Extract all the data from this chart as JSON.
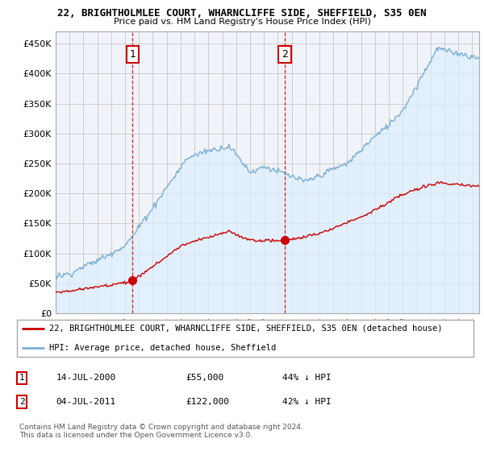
{
  "title": "22, BRIGHTHOLMLEE COURT, WHARNCLIFFE SIDE, SHEFFIELD, S35 0EN",
  "subtitle": "Price paid vs. HM Land Registry's House Price Index (HPI)",
  "ylabel_ticks": [
    0,
    50000,
    100000,
    150000,
    200000,
    250000,
    300000,
    350000,
    400000,
    450000
  ],
  "ylim": [
    0,
    470000
  ],
  "xlim_start": 1995.3,
  "xlim_end": 2025.5,
  "sale1_year": 2000.54,
  "sale1_price": 55000,
  "sale1_label": "1",
  "sale2_year": 2011.5,
  "sale2_price": 122000,
  "sale2_label": "2",
  "line_color_property": "#cc0000",
  "line_color_hpi": "#7bafd4",
  "fill_color_hpi": "#ddeeff",
  "vline_color": "#cc0000",
  "legend_line1": "22, BRIGHTHOLMLEE COURT, WHARNCLIFFE SIDE, SHEFFIELD, S35 0EN (detached house)",
  "legend_line2": "HPI: Average price, detached house, Sheffield",
  "table_row1_num": "1",
  "table_row1_date": "14-JUL-2000",
  "table_row1_price": "£55,000",
  "table_row1_hpi": "44% ↓ HPI",
  "table_row2_num": "2",
  "table_row2_date": "04-JUL-2011",
  "table_row2_price": "£122,000",
  "table_row2_hpi": "42% ↓ HPI",
  "footnote": "Contains HM Land Registry data © Crown copyright and database right 2024.\nThis data is licensed under the Open Government Licence v3.0.",
  "background_color": "#ffffff",
  "grid_color": "#cccccc"
}
